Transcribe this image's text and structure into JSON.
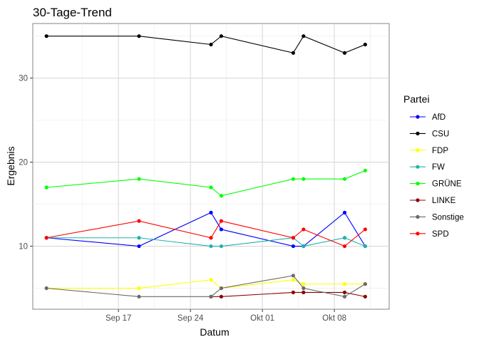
{
  "chart_data": {
    "type": "line",
    "title": "30-Tage-Trend",
    "xlabel": "Datum",
    "ylabel": "Ergebnis",
    "x_ticks": [
      "Sep 17",
      "Sep 24",
      "Okt 01",
      "Okt 08"
    ],
    "y_ticks": [
      10,
      20,
      30
    ],
    "ylim": [
      2.5,
      36.5
    ],
    "xlim": [
      "2017-09-08T16:00",
      "2017-10-13T08:00"
    ],
    "x_tick_dates": [
      "2017-09-17",
      "2017-09-24",
      "2017-10-01",
      "2017-10-08"
    ],
    "grid": true,
    "legend": {
      "title": "Partei",
      "position": "right"
    },
    "x": [
      "2017-09-10",
      "2017-09-19",
      "2017-09-26",
      "2017-09-27",
      "2017-10-04",
      "2017-10-05",
      "2017-10-09",
      "2017-10-11"
    ],
    "series": [
      {
        "name": "AfD",
        "color": "#0000ff",
        "values": [
          11,
          10,
          14,
          12,
          10,
          10,
          14,
          10
        ]
      },
      {
        "name": "CSU",
        "color": "#000000",
        "values": [
          35,
          35,
          34,
          35,
          33,
          35,
          33,
          34
        ]
      },
      {
        "name": "FDP",
        "color": "#ffff00",
        "values": [
          5,
          5,
          6,
          5,
          6,
          5.5,
          5.5,
          5.5
        ]
      },
      {
        "name": "FW",
        "color": "#20b2aa",
        "values": [
          11,
          11,
          10,
          10,
          11,
          10,
          11,
          10
        ]
      },
      {
        "name": "GRÜNE",
        "color": "#00ff00",
        "values": [
          17,
          18,
          17,
          16,
          18,
          18,
          18,
          19
        ]
      },
      {
        "name": "LINKE",
        "color": "#8b0000",
        "values": [
          null,
          null,
          4,
          4,
          4.5,
          4.5,
          4.5,
          4
        ]
      },
      {
        "name": "Sonstige",
        "color": "#696969",
        "values": [
          5,
          4,
          4,
          5,
          6.5,
          5,
          4,
          5.5
        ]
      },
      {
        "name": "SPD",
        "color": "#ff0000",
        "values": [
          11,
          13,
          11,
          13,
          11,
          12,
          10,
          12
        ]
      }
    ]
  }
}
